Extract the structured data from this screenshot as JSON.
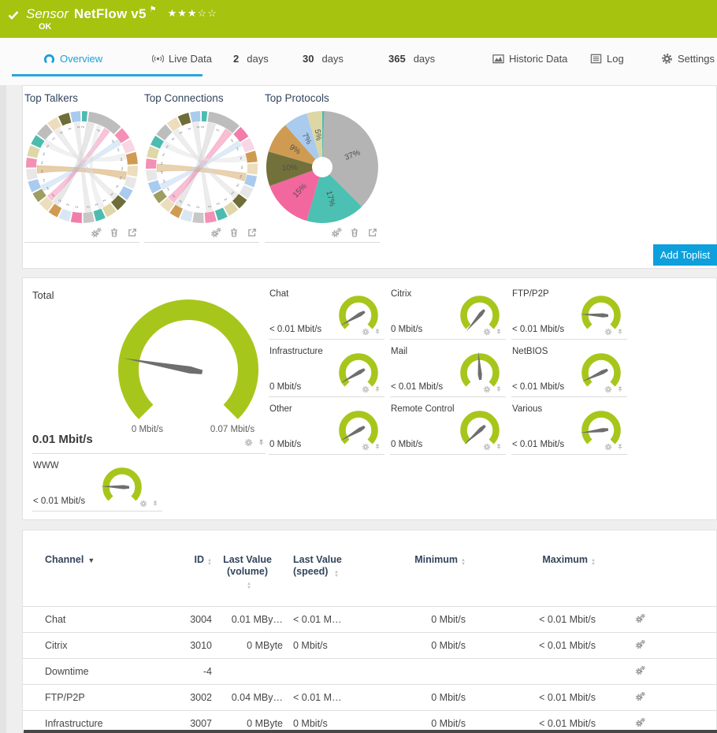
{
  "colors": {
    "brand_green": "#a5c30f",
    "gauge_green": "#a7c61b",
    "accent_blue": "#0da0dc",
    "tab_blue": "#1b9fd9",
    "navy": "#32455c",
    "needle": "#6e6e6e",
    "icon_gray": "#a8a8a8"
  },
  "header": {
    "kind_label": "Sensor",
    "sensor_name": "NetFlow v5",
    "status": "OK",
    "rating": {
      "filled": 3,
      "total": 5
    },
    "icons": [
      "check-icon",
      "flag-icon",
      "star-icons"
    ]
  },
  "tabs": [
    {
      "label": "Overview",
      "icon": "gauge-icon",
      "active": true
    },
    {
      "label": "Live Data",
      "icon": "live-icon"
    },
    {
      "prefix": "2",
      "label": "days"
    },
    {
      "prefix": "30",
      "label": "days"
    },
    {
      "prefix": "365",
      "label": "days"
    },
    {
      "label": "Historic Data",
      "icon": "chart-icon"
    },
    {
      "label": "Log",
      "icon": "log-icon"
    },
    {
      "label": "Settings",
      "icon": "gear-icon"
    }
  ],
  "toplists": {
    "panels": [
      {
        "title": "Top Talkers"
      },
      {
        "title": "Top Connections"
      },
      {
        "title": "Top Protocols"
      }
    ],
    "panel_icons": [
      "settings-icon",
      "trash-icon",
      "open-icon"
    ],
    "add_button_label": "Add Toplist"
  },
  "chart_data": [
    {
      "type": "chord",
      "title": "Top Talkers",
      "tick_label": "2",
      "segments": [
        {
          "c": "#4cbcb0",
          "w": 0.5
        },
        {
          "c": "#bdbdbd",
          "w": 3.2
        },
        {
          "c": "#f48fb5",
          "w": 1.1
        },
        {
          "c": "#f9d6e4",
          "w": 1.1
        },
        {
          "c": "#cf9b52",
          "w": 1.1
        },
        {
          "c": "#ecddbd",
          "w": 1.0
        },
        {
          "c": "#e7e7e7",
          "w": 1.0
        },
        {
          "c": "#a9cbee",
          "w": 1.0
        },
        {
          "c": "#6f6e39",
          "w": 1.1
        },
        {
          "c": "#dfd7a8",
          "w": 1.0
        },
        {
          "c": "#4cbcb0",
          "w": 0.9
        },
        {
          "c": "#c7c7c7",
          "w": 1.0
        },
        {
          "c": "#f27daa",
          "w": 1.0
        },
        {
          "c": "#d9e7f5",
          "w": 1.0
        },
        {
          "c": "#cf9b52",
          "w": 0.9
        },
        {
          "c": "#ecddbd",
          "w": 1.0
        },
        {
          "c": "#9e9d62",
          "w": 0.9
        },
        {
          "c": "#a9cbee",
          "w": 1.0
        },
        {
          "c": "#e7e7e7",
          "w": 1.0
        },
        {
          "c": "#f48fb5",
          "w": 0.9
        },
        {
          "c": "#dfd7a8",
          "w": 1.0
        },
        {
          "c": "#4cbcb0",
          "w": 0.9
        },
        {
          "c": "#bdbdbd",
          "w": 1.2
        },
        {
          "c": "#ecddbd",
          "w": 1.0
        },
        {
          "c": "#6f6e39",
          "w": 1.0
        },
        {
          "c": "#a9cbee",
          "w": 0.9
        }
      ],
      "ribbons": [
        {
          "a1": 6,
          "a2": 16,
          "b1": 212,
          "b2": 220,
          "c": "#bbbbbb",
          "o": 0.35
        },
        {
          "a1": 30,
          "a2": 38,
          "b1": 222,
          "b2": 230,
          "c": "#f27daa",
          "o": 0.45
        },
        {
          "a1": 96,
          "a2": 106,
          "b1": 262,
          "b2": 272,
          "c": "#cf9b52",
          "o": 0.5
        },
        {
          "a1": 52,
          "a2": 60,
          "b1": 238,
          "b2": 246,
          "c": "#b5d2ee",
          "o": 0.45
        },
        {
          "a1": 128,
          "a2": 136,
          "b1": 322,
          "b2": 330,
          "c": "#d8d8d8",
          "o": 0.45
        },
        {
          "a1": 168,
          "a2": 176,
          "b1": 350,
          "b2": 357,
          "c": "#cfcfcf",
          "o": 0.4
        },
        {
          "a1": 72,
          "a2": 80,
          "b1": 300,
          "b2": 308,
          "c": "#e3e3e3",
          "o": 0.5
        },
        {
          "a1": 20,
          "a2": 26,
          "b1": 150,
          "b2": 158,
          "c": "#dddddd",
          "o": 0.4
        }
      ]
    },
    {
      "type": "chord",
      "title": "Top Connections",
      "tick_label": "2",
      "segments": [
        {
          "c": "#4cbcb0",
          "w": 0.5
        },
        {
          "c": "#bdbdbd",
          "w": 3.0
        },
        {
          "c": "#f27daa",
          "w": 1.1
        },
        {
          "c": "#f9d6e4",
          "w": 1.1
        },
        {
          "c": "#cf9b52",
          "w": 1.0
        },
        {
          "c": "#ecddbd",
          "w": 1.0
        },
        {
          "c": "#a9cbee",
          "w": 1.0
        },
        {
          "c": "#e7e7e7",
          "w": 1.0
        },
        {
          "c": "#6f6e39",
          "w": 1.0
        },
        {
          "c": "#dfd7a8",
          "w": 1.0
        },
        {
          "c": "#4cbcb0",
          "w": 0.9
        },
        {
          "c": "#f48fb5",
          "w": 1.0
        },
        {
          "c": "#c7c7c7",
          "w": 1.0
        },
        {
          "c": "#d9e7f5",
          "w": 1.0
        },
        {
          "c": "#cf9b52",
          "w": 0.9
        },
        {
          "c": "#ecddbd",
          "w": 1.0
        },
        {
          "c": "#9e9d62",
          "w": 0.9
        },
        {
          "c": "#a9cbee",
          "w": 1.0
        },
        {
          "c": "#e7e7e7",
          "w": 1.0
        },
        {
          "c": "#f48fb5",
          "w": 0.9
        },
        {
          "c": "#dfd7a8",
          "w": 1.0
        },
        {
          "c": "#4cbcb0",
          "w": 0.9
        },
        {
          "c": "#bdbdbd",
          "w": 1.2
        },
        {
          "c": "#ecddbd",
          "w": 1.0
        },
        {
          "c": "#6f6e39",
          "w": 1.0
        },
        {
          "c": "#a9cbee",
          "w": 0.9
        }
      ],
      "ribbons": [
        {
          "a1": 8,
          "a2": 18,
          "b1": 208,
          "b2": 216,
          "c": "#bbbbbb",
          "o": 0.35
        },
        {
          "a1": 32,
          "a2": 42,
          "b1": 218,
          "b2": 228,
          "c": "#f27daa",
          "o": 0.5
        },
        {
          "a1": 98,
          "a2": 108,
          "b1": 264,
          "b2": 274,
          "c": "#cf9b52",
          "o": 0.45
        },
        {
          "a1": 54,
          "a2": 62,
          "b1": 240,
          "b2": 248,
          "c": "#b5d2ee",
          "o": 0.45
        },
        {
          "a1": 126,
          "a2": 134,
          "b1": 320,
          "b2": 328,
          "c": "#d8d8d8",
          "o": 0.45
        },
        {
          "a1": 166,
          "a2": 174,
          "b1": 348,
          "b2": 356,
          "c": "#cfcfcf",
          "o": 0.4
        },
        {
          "a1": 74,
          "a2": 82,
          "b1": 298,
          "b2": 306,
          "c": "#e3e3e3",
          "o": 0.5
        }
      ]
    },
    {
      "type": "pie",
      "title": "Top Protocols",
      "slices": [
        {
          "label": "",
          "value": 0.6,
          "color": "#4cbcb0"
        },
        {
          "label": "37%",
          "value": 36.9,
          "color": "#b4b4b4"
        },
        {
          "label": "17%",
          "value": 17,
          "color": "#4cc0b2"
        },
        {
          "label": "15%",
          "value": 15,
          "color": "#f2679e"
        },
        {
          "label": "10%",
          "value": 10,
          "color": "#72713c"
        },
        {
          "label": "9%",
          "value": 9,
          "color": "#cf9b52"
        },
        {
          "label": "7%",
          "value": 7,
          "color": "#a9cbee"
        },
        {
          "label": "5%",
          "value": 4.5,
          "color": "#ddd6a5"
        }
      ]
    }
  ],
  "gauges": {
    "total": {
      "name": "Total",
      "value": "0.01 Mbit/s",
      "min_label": "0 Mbit/s",
      "max_label": "0.07 Mbit/s",
      "needle_deg": 280
    },
    "cell_icons": [
      "gear-icon",
      "pin-icon"
    ],
    "channels": [
      {
        "name": "Chat",
        "value": "< 0.01 Mbit/s",
        "needle_deg": 240
      },
      {
        "name": "Citrix",
        "value": "0 Mbit/s",
        "needle_deg": 220
      },
      {
        "name": "FTP/P2P",
        "value": "< 0.01 Mbit/s",
        "needle_deg": 273
      },
      {
        "name": "Infrastructure",
        "value": "0 Mbit/s",
        "needle_deg": 240
      },
      {
        "name": "Mail",
        "value": "< 0.01 Mbit/s",
        "needle_deg": 356
      },
      {
        "name": "NetBIOS",
        "value": "< 0.01 Mbit/s",
        "needle_deg": 245
      },
      {
        "name": "Other",
        "value": "0 Mbit/s",
        "needle_deg": 240
      },
      {
        "name": "Remote Control",
        "value": "0 Mbit/s",
        "needle_deg": 228
      },
      {
        "name": "Various",
        "value": "< 0.01 Mbit/s",
        "needle_deg": 263
      },
      {
        "name": "WWW",
        "value": "< 0.01 Mbit/s",
        "needle_deg": 272
      }
    ]
  },
  "table": {
    "columns": [
      {
        "label": "Channel",
        "sort": "active"
      },
      {
        "label": "ID",
        "sort": "both"
      },
      {
        "label": "Last Value (volume)",
        "sort": "both"
      },
      {
        "label": "Last Value (speed)",
        "sort": "both"
      },
      {
        "label": "Minimum",
        "sort": "both"
      },
      {
        "label": "Maximum",
        "sort": "both"
      }
    ],
    "rows": [
      {
        "channel": "Chat",
        "id": "3004",
        "volume": "0.01 MBy…",
        "speed": "< 0.01 M…",
        "min": "0 Mbit/s",
        "max": "< 0.01 Mbit/s"
      },
      {
        "channel": "Citrix",
        "id": "3010",
        "volume": "0 MByte",
        "speed": "0 Mbit/s",
        "min": "0 Mbit/s",
        "max": "< 0.01 Mbit/s"
      },
      {
        "channel": "Downtime",
        "id": "-4",
        "volume": "",
        "speed": "",
        "min": "",
        "max": ""
      },
      {
        "channel": "FTP/P2P",
        "id": "3002",
        "volume": "0.04 MBy…",
        "speed": "< 0.01 M…",
        "min": "0 Mbit/s",
        "max": "< 0.01 Mbit/s"
      },
      {
        "channel": "Infrastructure",
        "id": "3007",
        "volume": "0 MByte",
        "speed": "0 Mbit/s",
        "min": "0 Mbit/s",
        "max": "< 0.01 Mbit/s"
      }
    ],
    "row_icon": "settings-icon"
  }
}
